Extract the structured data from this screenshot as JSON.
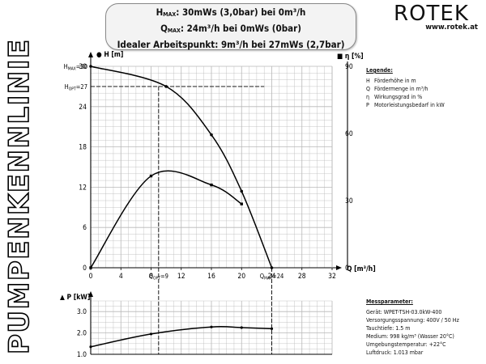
{
  "vertical_title": "PUMPENKENNLINIE",
  "info": {
    "hmax_label": "H",
    "hmax_sub": "MAX",
    "hmax_text": ": 30mWs (3,0bar) bei 0m³/h",
    "qmax_label": "Q",
    "qmax_sub": "MAX",
    "qmax_text": ": 24m³/h bei 0mWs (0bar)",
    "ideal_text": "Idealer Arbeitspunkt: 9m³/h bei 27mWs (2,7bar)"
  },
  "logo": {
    "brand": "ROTEK",
    "url": "www.rotek.at"
  },
  "legend": {
    "title": "Legende:",
    "items": [
      {
        "k": "H",
        "v": "Förderhöhe in m"
      },
      {
        "k": "Q",
        "v": "Fördermenge in m³/h"
      },
      {
        "k": "η",
        "v": "Wirkungsgrad in %"
      },
      {
        "k": "P",
        "v": "Motorleistungsbedarf in kW"
      }
    ]
  },
  "params": {
    "title": "Messparameter:",
    "lines": [
      "Gerät: WPET-TSH-03.0kW-400",
      "Versorgungsspannung: 400V / 50 Hz",
      "Tauchtiefe: 1.5 m",
      "Medium: 998 kg/m³ (Wasser 20°C)",
      "Umgebungstemperatur: +22°C",
      "Luftdruck: 1.013 mbar"
    ]
  },
  "chart_data": [
    {
      "type": "line",
      "x_ticks": [
        "0",
        "4",
        "8",
        "12",
        "16",
        "20",
        "24",
        "28",
        "32"
      ],
      "x_tick_values": [
        0,
        4,
        8,
        12,
        16,
        20,
        24,
        28,
        32
      ],
      "xlabel": "Q [m³/h]",
      "xlim": [
        0,
        32
      ],
      "y_left_label": "H [m]",
      "y_left_ticks": [
        "0",
        "6",
        "12",
        "18",
        "24",
        "30"
      ],
      "y_left_tick_values": [
        0,
        6,
        12,
        18,
        24,
        30
      ],
      "y_left_lim": [
        0,
        30
      ],
      "y_left_extra": [
        {
          "main": "H",
          "sub": "MAX",
          "suffix": "=30",
          "value": 30
        },
        {
          "main": "H",
          "sub": "OPT",
          "suffix": "=27",
          "value": 27
        }
      ],
      "y_right_label": "η [%]",
      "y_right_ticks": [
        "0",
        "30",
        "60",
        "90"
      ],
      "y_right_tick_values": [
        0,
        30,
        60,
        90
      ],
      "y_right_lim": [
        0,
        90
      ],
      "x_extra": [
        {
          "main": "Q",
          "sub": "OPT",
          "suffix": "=9",
          "value": 9
        },
        {
          "main": "Q",
          "sub": "MAX",
          "suffix": "=24",
          "value": 24
        }
      ],
      "series": [
        {
          "name": "H",
          "axis": "left",
          "x": [
            0,
            10,
            16,
            20,
            24
          ],
          "y": [
            30,
            27,
            19.8,
            11.4,
            0
          ]
        },
        {
          "name": "η",
          "axis": "right",
          "x": [
            0,
            8,
            16,
            20
          ],
          "y": [
            0,
            41,
            37,
            28.5
          ]
        }
      ],
      "grid": true
    },
    {
      "type": "line",
      "ylabel": "P [kW]",
      "y_ticks": [
        "1.0",
        "2.0",
        "3.0"
      ],
      "y_tick_values": [
        1,
        2,
        3
      ],
      "ylim": [
        1,
        3.5
      ],
      "xlim": [
        0,
        32
      ],
      "series": [
        {
          "name": "P",
          "x": [
            0,
            8,
            16,
            20,
            24
          ],
          "y": [
            1.35,
            1.95,
            2.28,
            2.25,
            2.2
          ]
        }
      ],
      "grid": true
    }
  ],
  "colors": {
    "grid": "#b8b8b8",
    "curve": "#000000",
    "frame": "#000000"
  }
}
